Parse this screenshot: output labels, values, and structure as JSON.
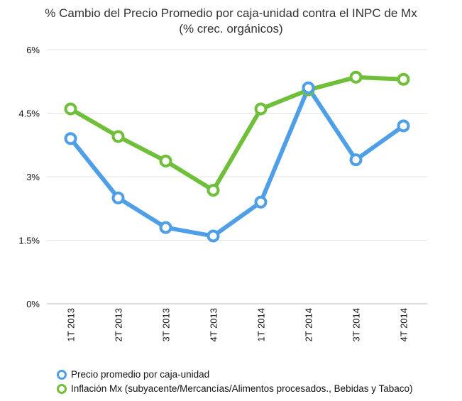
{
  "chart_data": {
    "type": "line",
    "title": "% Cambio del Precio Promedio por caja-unidad contra el INPC  de Mx",
    "subtitle": "(% crec. orgánicos)",
    "categories": [
      "1T 2013",
      "2T 2013",
      "3T 2013",
      "4T 2013",
      "1T 2014",
      "2T 2014",
      "3T 2014",
      "4T 2014"
    ],
    "y_ticks": [
      "0%",
      "1.5%",
      "3%",
      "4.5%",
      "6%"
    ],
    "y_tick_values": [
      0,
      1.5,
      3,
      4.5,
      6
    ],
    "ylim": [
      0,
      6
    ],
    "grid": true,
    "legend_position": "bottom",
    "series": [
      {
        "name": "Precio promedio por caja-unidad",
        "color": "#4f9ee8",
        "values": [
          3.9,
          2.5,
          1.8,
          1.6,
          2.4,
          5.1,
          3.4,
          4.2
        ]
      },
      {
        "name": "Inflación Mx (subyacente/Mercancías/Alimentos procesados., Bebidas y Tabaco)",
        "color": "#6fbf3a",
        "values": [
          4.6,
          3.95,
          3.37,
          2.68,
          4.6,
          5.05,
          5.35,
          5.3
        ]
      }
    ]
  }
}
